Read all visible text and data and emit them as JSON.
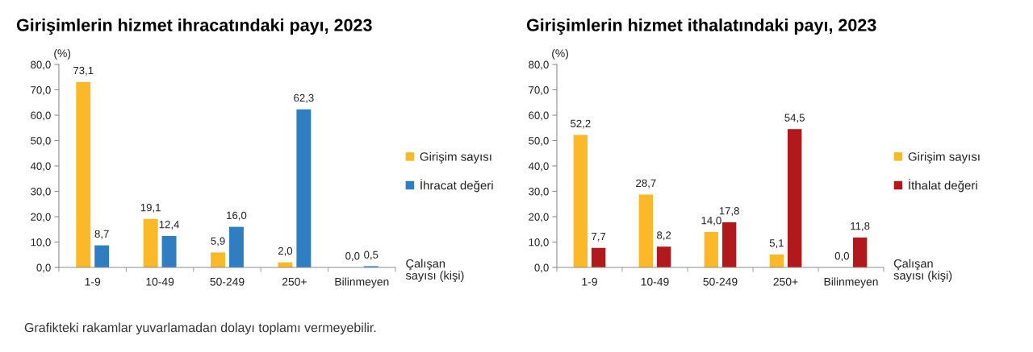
{
  "chart_data": [
    {
      "type": "bar",
      "title": "Girişimlerin hizmet ihracatındaki payı, 2023",
      "ylabel": "(%)",
      "xlabel": "Çalışan\nsayısı (kişi)",
      "categories": [
        "1-9",
        "10-49",
        "50-249",
        "250+",
        "Bilinmeyen"
      ],
      "series": [
        {
          "name": "Girişim sayısı",
          "color": "#fbb829",
          "values": [
            73.1,
            19.1,
            5.9,
            2.0,
            0.0
          ],
          "value_labels": [
            "73,1",
            "19,1",
            "5,9",
            "2,0",
            "0,0"
          ]
        },
        {
          "name": "İhracat değeri",
          "color": "#2e7ec1",
          "values": [
            8.7,
            12.4,
            16.0,
            62.3,
            0.5
          ],
          "value_labels": [
            "8,7",
            "12,4",
            "16,0",
            "62,3",
            "0,5"
          ]
        }
      ],
      "ylim": [
        0,
        80
      ],
      "yticks": [
        {
          "value": 0,
          "label": "0,0"
        },
        {
          "value": 10,
          "label": "10,0"
        },
        {
          "value": 20,
          "label": "20,0"
        },
        {
          "value": 30,
          "label": "30,0"
        },
        {
          "value": 40,
          "label": "40,0"
        },
        {
          "value": 50,
          "label": "50,0"
        },
        {
          "value": 60,
          "label": "60,0"
        },
        {
          "value": 70,
          "label": "70,0"
        },
        {
          "value": 80,
          "label": "80,0"
        }
      ],
      "legend": "right",
      "grid": false,
      "annotations": [
        "Grafikteki rakamlar yuvarlamadan dolayı toplamı vermeyebilir."
      ]
    },
    {
      "type": "bar",
      "title": "Girişimlerin hizmet ithalatındaki payı, 2023",
      "ylabel": "(%)",
      "xlabel": "Çalışan\nsayısı (kişi)",
      "categories": [
        "1-9",
        "10-49",
        "50-249",
        "250+",
        "Bilinmeyen"
      ],
      "series": [
        {
          "name": "Girişim sayısı",
          "color": "#fbb829",
          "values": [
            52.2,
            28.7,
            14.0,
            5.1,
            0.0
          ],
          "value_labels": [
            "52,2",
            "28,7",
            "14,0",
            "5,1",
            "0,0"
          ]
        },
        {
          "name": "İthalat değeri",
          "color": "#b2191d",
          "values": [
            7.7,
            8.2,
            17.8,
            54.5,
            11.8
          ],
          "value_labels": [
            "7,7",
            "8,2",
            "17,8",
            "54,5",
            "11,8"
          ]
        }
      ],
      "ylim": [
        0,
        80
      ],
      "yticks": [
        {
          "value": 0,
          "label": "0,0"
        },
        {
          "value": 10,
          "label": "10,0"
        },
        {
          "value": 20,
          "label": "20,0"
        },
        {
          "value": 30,
          "label": "30,0"
        },
        {
          "value": 40,
          "label": "40,0"
        },
        {
          "value": 50,
          "label": "50,0"
        },
        {
          "value": 60,
          "label": "60,0"
        },
        {
          "value": 70,
          "label": "70,0"
        },
        {
          "value": 80,
          "label": "80,0"
        }
      ],
      "legend": "right",
      "grid": false
    }
  ]
}
